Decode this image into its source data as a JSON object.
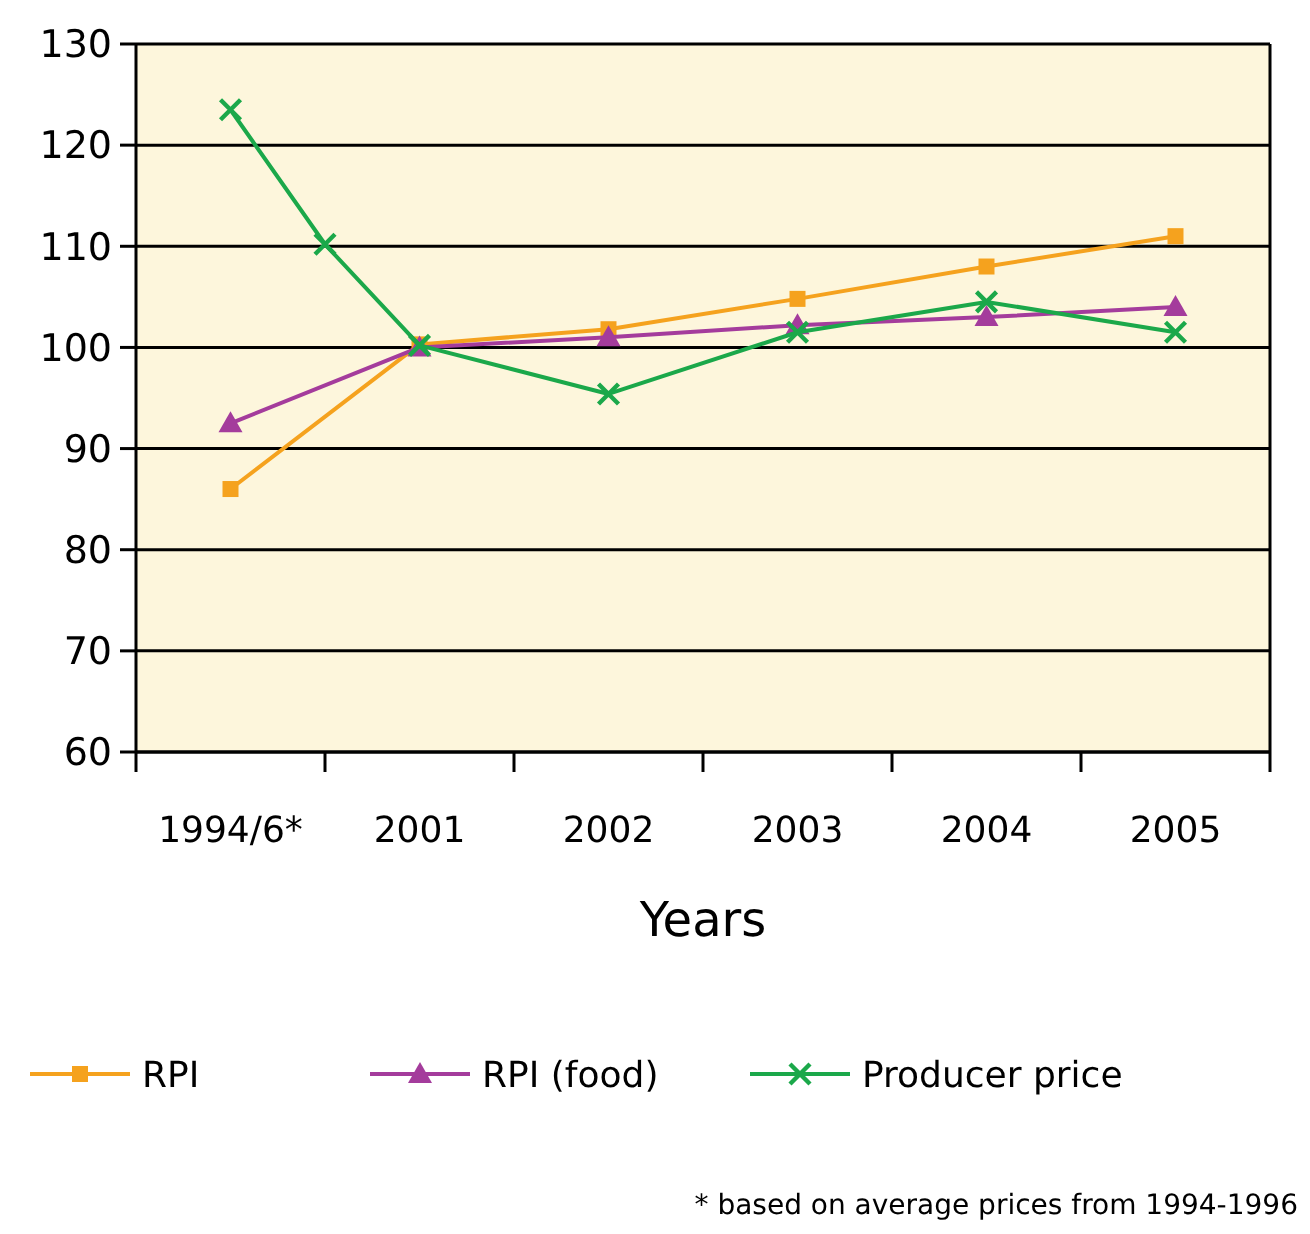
{
  "chart_data": {
    "type": "line",
    "xlabel": "Years",
    "annotations": [
      "* based on average prices from 1994-1996"
    ],
    "categories": [
      "1994/6*",
      null,
      "2001",
      null,
      "2002",
      null,
      "2003",
      null,
      "2004",
      null,
      "2005"
    ],
    "ylim": [
      60,
      130
    ],
    "yticks": [
      60,
      70,
      80,
      90,
      100,
      110,
      120,
      130
    ],
    "grid": "y",
    "legend": "bottom",
    "series": [
      {
        "name": "RPI",
        "color": "#f5a21e",
        "marker": "square",
        "values": [
          86,
          null,
          100.3,
          null,
          101.8,
          null,
          104.8,
          null,
          108,
          null,
          111
        ]
      },
      {
        "name": "RPI (food)",
        "color": "#a43c9c",
        "marker": "triangle",
        "values": [
          92.5,
          null,
          100,
          null,
          101,
          null,
          102.2,
          null,
          103,
          null,
          104
        ]
      },
      {
        "name": "Producer price",
        "color": "#1ba84a",
        "marker": "cross",
        "values": [
          123.5,
          110.2,
          100.2,
          null,
          95.4,
          null,
          101.5,
          null,
          104.5,
          null,
          101.5
        ]
      }
    ]
  }
}
